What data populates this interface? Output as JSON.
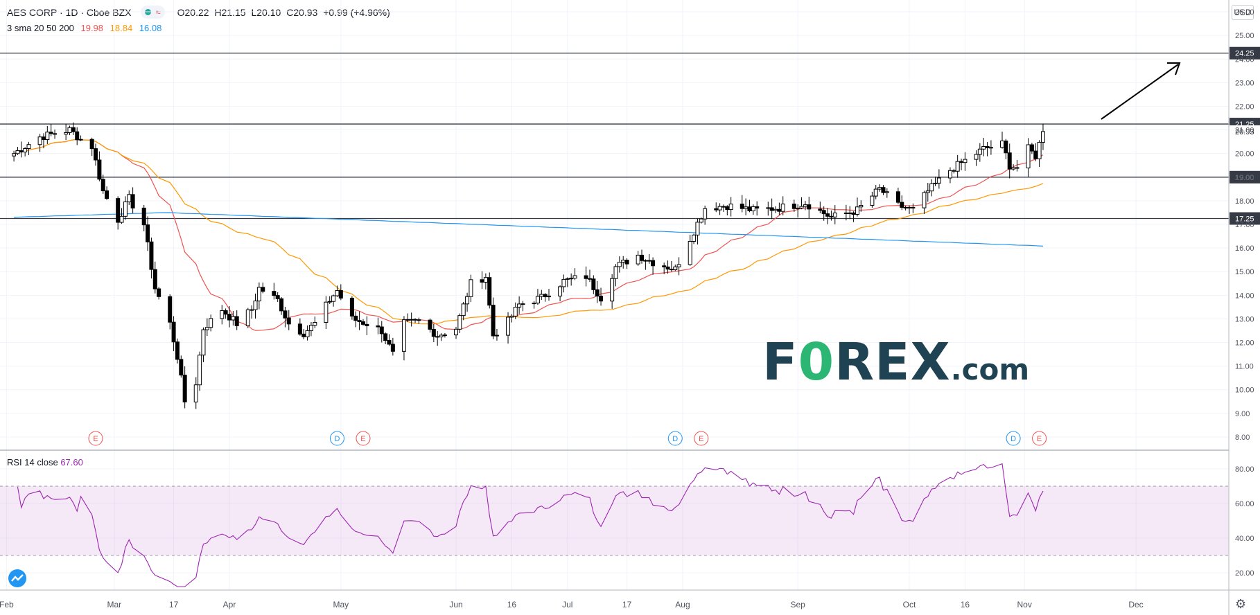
{
  "header": {
    "symbol": "AES CORP · 1D · Cboe BZX",
    "open": "O20.22",
    "high": "H21.15",
    "low": "L20.10",
    "close": "C20.93",
    "change": "+0.99 (+4.96%)",
    "up_color": "#26a69a",
    "down_color": "#ef5350"
  },
  "indicators": {
    "sma_label": "3 sma 20 50 200",
    "sma20_value": "19.98",
    "sma50_value": "18.84",
    "sma200_value": "16.08",
    "sma20_color": "#ef5350",
    "sma50_color": "#ff9800",
    "sma200_color": "#2196f3",
    "rsi_label": "RSI 14 close",
    "rsi_value": "67.60",
    "rsi_color": "#9c27b0"
  },
  "currency": "USD",
  "logo": {
    "part1": "F",
    "part2": "0",
    "part3": "REX",
    "part4": ".com"
  },
  "chart_data": [
    {
      "type": "candlestick",
      "title": "AES CORP · 1D · Cboe BZX",
      "ylim": [
        7.5,
        26.5
      ],
      "y_ticks": [
        "8.00",
        "9.00",
        "10.00",
        "11.00",
        "12.00",
        "13.00",
        "14.00",
        "15.00",
        "16.00",
        "17.00",
        "18.00",
        "19.00",
        "20.00",
        "21.00",
        "22.00",
        "23.00",
        "24.00",
        "25.00",
        "26.00"
      ],
      "x_ticks": [
        "Feb",
        "Mar",
        "17",
        "Apr",
        "May",
        "Jun",
        "16",
        "Jul",
        "17",
        "Aug",
        "Sep",
        "Oct",
        "16",
        "Nov",
        "Dec"
      ],
      "price_levels": [
        {
          "value": 24.25,
          "label": "24.25"
        },
        {
          "value": 21.25,
          "label": "21.25"
        },
        {
          "value": 19.0,
          "label": "19.00"
        },
        {
          "value": 17.25,
          "label": "17.25"
        }
      ],
      "last_price_label": "20.93",
      "events": [
        {
          "date": "2020-02-25",
          "label": "E"
        },
        {
          "date": "2020-04-30",
          "label": "D"
        },
        {
          "date": "2020-05-07",
          "label": "E"
        },
        {
          "date": "2020-07-30",
          "label": "D"
        },
        {
          "date": "2020-08-06",
          "label": "E"
        },
        {
          "date": "2020-10-29",
          "label": "D"
        },
        {
          "date": "2020-11-05",
          "label": "E"
        }
      ],
      "anchors": [
        [
          "2020-02-03",
          20.0
        ],
        [
          "2020-02-10",
          20.7
        ],
        [
          "2020-02-18",
          21.0
        ],
        [
          "2020-02-21",
          20.6
        ],
        [
          "2020-02-24",
          20.3
        ],
        [
          "2020-02-27",
          18.4
        ],
        [
          "2020-03-02",
          17.2
        ],
        [
          "2020-03-05",
          18.1
        ],
        [
          "2020-03-09",
          17.0
        ],
        [
          "2020-03-12",
          14.3
        ],
        [
          "2020-03-16",
          12.8
        ],
        [
          "2020-03-18",
          11.4
        ],
        [
          "2020-03-20",
          9.5
        ],
        [
          "2020-03-23",
          10.3
        ],
        [
          "2020-03-25",
          12.6
        ],
        [
          "2020-03-30",
          13.4
        ],
        [
          "2020-04-03",
          12.8
        ],
        [
          "2020-04-07",
          13.4
        ],
        [
          "2020-04-09",
          14.3
        ],
        [
          "2020-04-14",
          13.8
        ],
        [
          "2020-04-17",
          12.8
        ],
        [
          "2020-04-21",
          12.4
        ],
        [
          "2020-04-24",
          12.8
        ],
        [
          "2020-04-28",
          13.8
        ],
        [
          "2020-04-30",
          14.2
        ],
        [
          "2020-05-04",
          13.0
        ],
        [
          "2020-05-08",
          12.8
        ],
        [
          "2020-05-12",
          12.5
        ],
        [
          "2020-05-15",
          11.5
        ],
        [
          "2020-05-18",
          12.8
        ],
        [
          "2020-05-22",
          12.9
        ],
        [
          "2020-05-27",
          12.3
        ],
        [
          "2020-06-01",
          12.6
        ],
        [
          "2020-06-05",
          14.5
        ],
        [
          "2020-06-09",
          14.8
        ],
        [
          "2020-06-11",
          12.3
        ],
        [
          "2020-06-15",
          12.9
        ],
        [
          "2020-06-18",
          13.6
        ],
        [
          "2020-06-24",
          13.9
        ],
        [
          "2020-06-30",
          14.6
        ],
        [
          "2020-07-06",
          14.8
        ],
        [
          "2020-07-10",
          13.9
        ],
        [
          "2020-07-14",
          15.2
        ],
        [
          "2020-07-20",
          15.7
        ],
        [
          "2020-07-24",
          15.4
        ],
        [
          "2020-07-30",
          15.1
        ],
        [
          "2020-08-03",
          16.4
        ],
        [
          "2020-08-07",
          17.7
        ],
        [
          "2020-08-13",
          17.8
        ],
        [
          "2020-08-20",
          17.6
        ],
        [
          "2020-08-27",
          17.7
        ],
        [
          "2020-09-03",
          17.9
        ],
        [
          "2020-09-10",
          17.3
        ],
        [
          "2020-09-17",
          17.6
        ],
        [
          "2020-09-23",
          18.5
        ],
        [
          "2020-09-28",
          17.8
        ],
        [
          "2020-10-02",
          17.6
        ],
        [
          "2020-10-06",
          18.4
        ],
        [
          "2020-10-12",
          19.3
        ],
        [
          "2020-10-16",
          19.7
        ],
        [
          "2020-10-21",
          20.2
        ],
        [
          "2020-10-26",
          20.4
        ],
        [
          "2020-10-28",
          19.5
        ],
        [
          "2020-10-30",
          19.4
        ],
        [
          "2020-11-02",
          20.2
        ],
        [
          "2020-11-04",
          19.9
        ],
        [
          "2020-11-06",
          20.93
        ]
      ],
      "rsi_ylim": [
        10,
        90
      ],
      "rsi_ticks": [
        "20.00",
        "40.00",
        "60.00",
        "80.00"
      ],
      "rsi_band": [
        30,
        70
      ]
    }
  ]
}
